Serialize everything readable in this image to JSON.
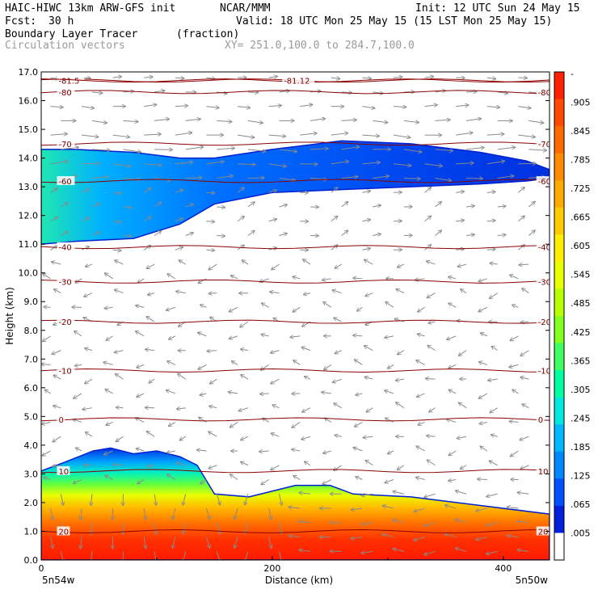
{
  "header": {
    "model": "HAIC-HIWC 13km ARW-GFS init",
    "org": "NCAR/MMM",
    "init": "Init: 12 UTC Sun 24 May 15",
    "fcst_label": "Fcst:",
    "fcst_value": "30 h",
    "valid": "Valid: 18 UTC Mon 25 May 15 (15 LST Mon 25 May 15)",
    "field_name": "Boundary Layer Tracer",
    "field_unit": "(fraction)",
    "vector_label": "Circulation vectors",
    "xy_range": "XY= 251.0,100.0 to 284.7,100.0"
  },
  "chart_data": {
    "type": "heatmap",
    "title": "Boundary Layer Tracer",
    "ylabel": "Height (km)",
    "xlabel": "Distance (km)",
    "ylim": [
      0.0,
      17.0
    ],
    "xlim": [
      0,
      440
    ],
    "y_ticks": [
      "0.0",
      "1.0",
      "2.0",
      "3.0",
      "4.0",
      "5.0",
      "6.0",
      "7.0",
      "8.0",
      "9.0",
      "10.0",
      "11.0",
      "12.0",
      "13.0",
      "14.0",
      "15.0",
      "16.0",
      "17.0"
    ],
    "x_ticks": [
      {
        "value": 0,
        "label": "0"
      },
      {
        "value": 200,
        "label": "200"
      },
      {
        "value": 400,
        "label": "400"
      }
    ],
    "x_endpoints": {
      "left": "5n54w",
      "right": "5n50w"
    },
    "colorbar": {
      "labels": [
        "-",
        ".905",
        ".845",
        ".785",
        ".725",
        ".665",
        ".605",
        ".545",
        ".485",
        ".425",
        ".365",
        ".305",
        ".245",
        ".185",
        ".125",
        ".065",
        ".005"
      ],
      "colors": [
        "#ff2200",
        "#ff4a00",
        "#ff6a00",
        "#ff8c00",
        "#ffaa00",
        "#ffcc00",
        "#ffee00",
        "#e8ff00",
        "#b8ff00",
        "#80ff20",
        "#40ff60",
        "#00ffa0",
        "#00e8e0",
        "#00b8ff",
        "#0088ff",
        "#0050ff",
        "#0020dd",
        "#ffffff"
      ]
    },
    "lower_layer_top_km": [
      {
        "x": 0,
        "top": 3.1
      },
      {
        "x": 20,
        "top": 3.4
      },
      {
        "x": 45,
        "top": 3.8
      },
      {
        "x": 60,
        "top": 3.9
      },
      {
        "x": 80,
        "top": 3.7
      },
      {
        "x": 100,
        "top": 3.8
      },
      {
        "x": 120,
        "top": 3.6
      },
      {
        "x": 135,
        "top": 3.3
      },
      {
        "x": 150,
        "top": 2.3
      },
      {
        "x": 180,
        "top": 2.2
      },
      {
        "x": 200,
        "top": 2.4
      },
      {
        "x": 220,
        "top": 2.6
      },
      {
        "x": 250,
        "top": 2.6
      },
      {
        "x": 270,
        "top": 2.3
      },
      {
        "x": 320,
        "top": 2.2
      },
      {
        "x": 380,
        "top": 1.9
      },
      {
        "x": 440,
        "top": 1.6
      }
    ],
    "upper_layer": [
      {
        "x": 0,
        "bottom": 11.0,
        "top": 14.3
      },
      {
        "x": 30,
        "bottom": 11.1,
        "top": 14.3
      },
      {
        "x": 80,
        "bottom": 11.2,
        "top": 14.2
      },
      {
        "x": 120,
        "bottom": 11.7,
        "top": 14.0
      },
      {
        "x": 150,
        "bottom": 12.4,
        "top": 14.0
      },
      {
        "x": 200,
        "bottom": 12.8,
        "top": 14.3
      },
      {
        "x": 260,
        "bottom": 12.9,
        "top": 14.6
      },
      {
        "x": 320,
        "bottom": 13.0,
        "top": 14.5
      },
      {
        "x": 380,
        "bottom": 13.1,
        "top": 14.2
      },
      {
        "x": 420,
        "bottom": 13.2,
        "top": 13.9
      },
      {
        "x": 440,
        "bottom": 13.3,
        "top": 13.6
      }
    ],
    "isotherms": [
      {
        "height": 1.0,
        "label": "20"
      },
      {
        "height": 3.1,
        "label": "10"
      },
      {
        "height": 4.9,
        "label": "0"
      },
      {
        "height": 6.6,
        "label": "-10"
      },
      {
        "height": 8.3,
        "label": "-20"
      },
      {
        "height": 9.7,
        "label": "-30"
      },
      {
        "height": 10.9,
        "label": "-40"
      },
      {
        "height": 13.2,
        "label": "-60"
      },
      {
        "height": 14.5,
        "label": "-70"
      },
      {
        "height": 16.3,
        "label": "-80"
      },
      {
        "height": 16.7,
        "label": "-81.5"
      },
      {
        "height": 16.7,
        "label": "-81.12"
      }
    ],
    "isotherm_label_positions_km": [
      15,
      430
    ]
  }
}
